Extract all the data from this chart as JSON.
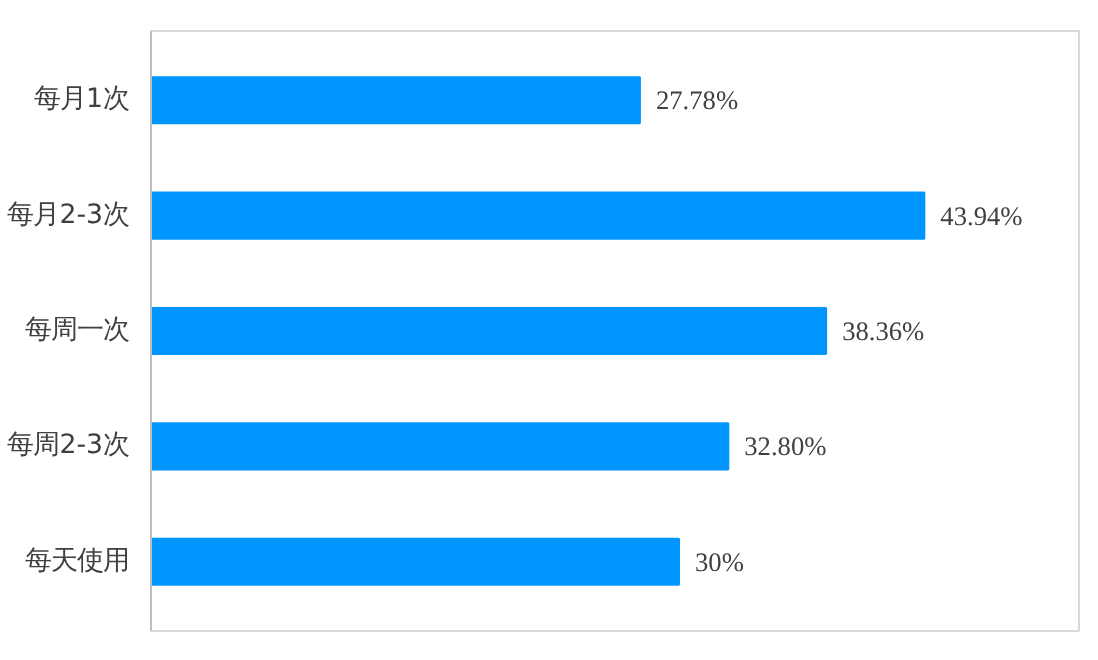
{
  "chart_data": {
    "type": "bar",
    "orientation": "horizontal",
    "categories": [
      "每月1次",
      "每月2-3次",
      "每周一次",
      "每周2-3次",
      "每天使用"
    ],
    "values": [
      27.78,
      43.94,
      38.36,
      32.8,
      30
    ],
    "value_labels": [
      "27.78%",
      "43.94%",
      "38.36%",
      "32.80%",
      "30%"
    ],
    "color": "#0096ff",
    "grid": false
  }
}
